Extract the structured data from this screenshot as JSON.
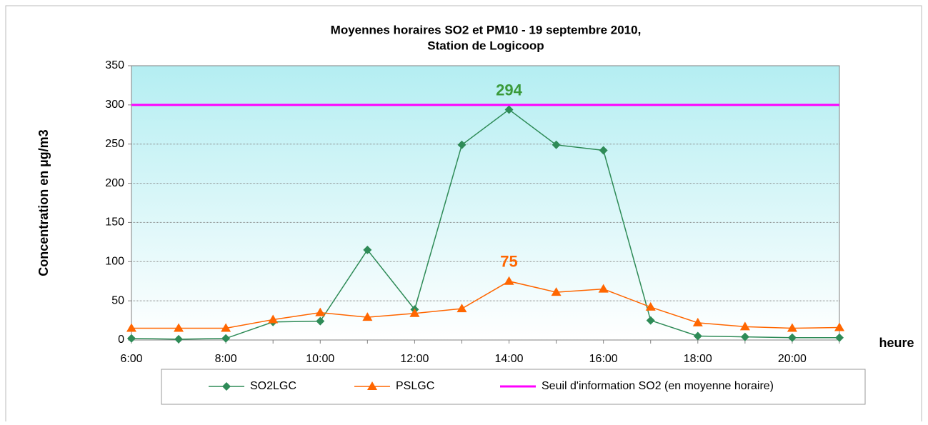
{
  "chart_data": {
    "type": "line",
    "title": "Moyennes horaires SO2 et PM10 -  19 septembre 2010,",
    "subtitle": "Station de Logicoop",
    "y_label": "Concentration en µg/m3",
    "x_label": "heure",
    "categories": [
      "6:00",
      null,
      "8:00",
      null,
      "10:00",
      null,
      "12:00",
      null,
      "14:00",
      null,
      "16:00",
      null,
      "18:00",
      null,
      "20:00",
      null
    ],
    "series": [
      {
        "name": "SO2LGC",
        "color": "#2e8b57",
        "marker": "diamond",
        "data_labels": "max",
        "label_color": "#3a9a3a",
        "values": [
          2,
          1,
          2,
          23,
          24,
          115,
          39,
          249,
          294,
          249,
          242,
          25,
          5,
          4,
          3,
          3
        ]
      },
      {
        "name": "PSLGC",
        "color": "#ff6600",
        "marker": "triangle",
        "data_labels": "max",
        "label_color": "#ff6600",
        "values": [
          15,
          15,
          15,
          26,
          35,
          29,
          34,
          40,
          75,
          61,
          65,
          42,
          22,
          17,
          15,
          16
        ]
      },
      {
        "name": "Seuil d'information SO2 (en moyenne horaire)",
        "color": "#ff00ff",
        "marker": "none",
        "width": 3,
        "values": [
          300,
          300,
          300,
          300,
          300,
          300,
          300,
          300,
          300,
          300,
          300,
          300,
          300,
          300,
          300,
          300
        ]
      }
    ],
    "ylim": [
      0,
      350
    ],
    "yticks": [
      0,
      50,
      100,
      150,
      200,
      250,
      300,
      350
    ],
    "grid": true,
    "legend": "bottom"
  }
}
